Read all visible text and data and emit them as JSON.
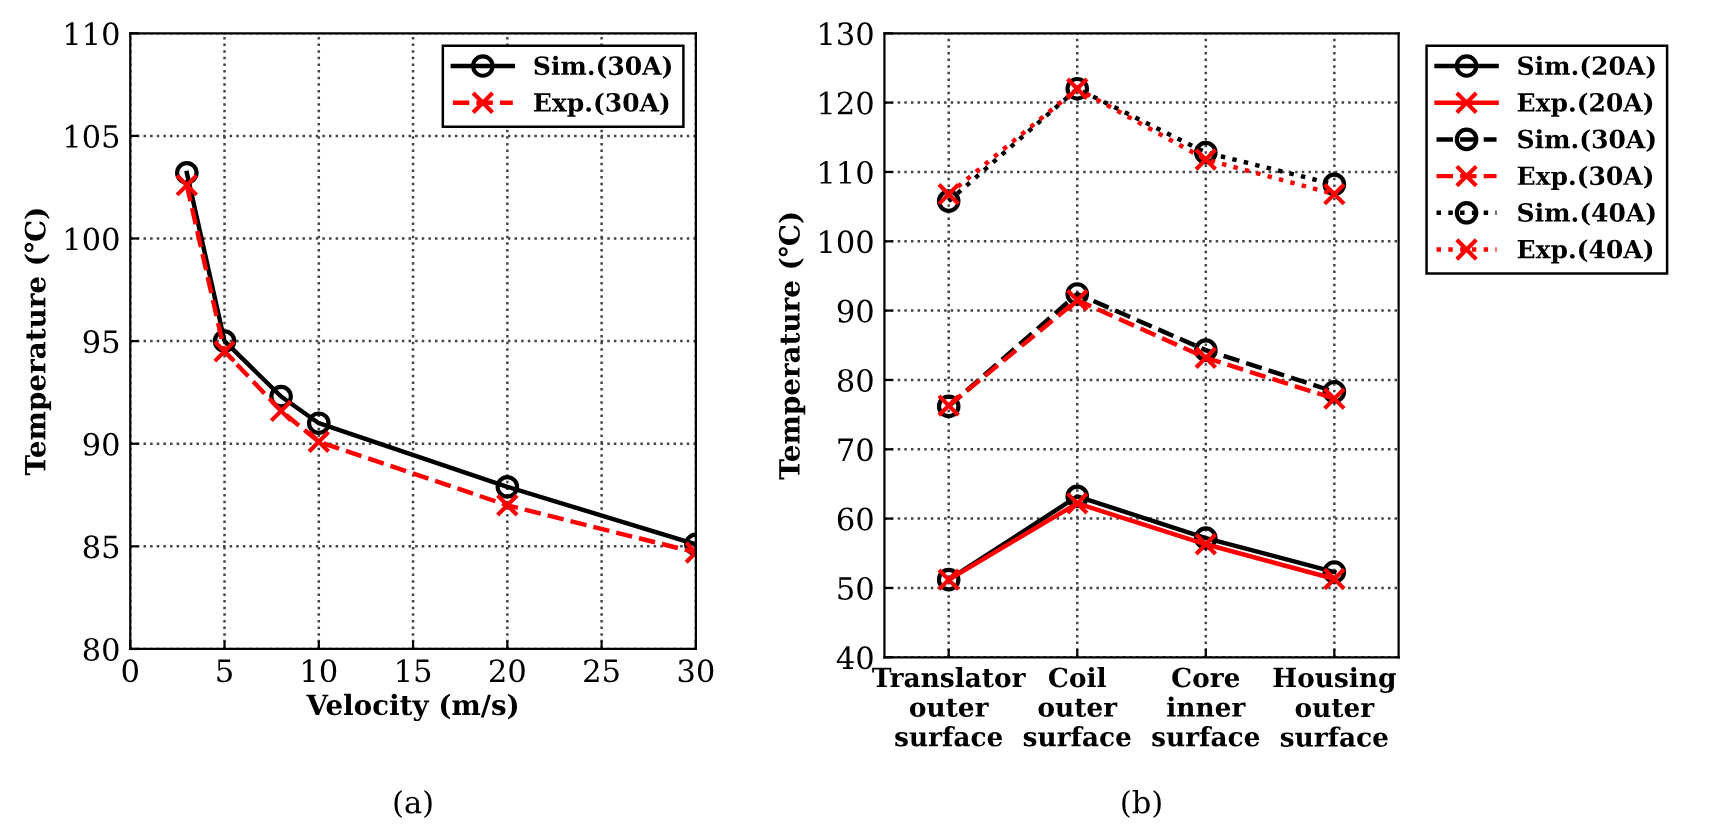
{
  "chart_data": [
    {
      "type": "line",
      "xlabel": "Velocity (m/s)",
      "ylabel": "Temperature (℃)",
      "x": [
        3,
        5,
        8,
        10,
        20,
        30
      ],
      "xlim": [
        0,
        30
      ],
      "xticks": [
        0,
        5,
        10,
        15,
        20,
        25,
        30
      ],
      "ylim": [
        80,
        110
      ],
      "yticks": [
        80,
        85,
        90,
        95,
        100,
        105,
        110
      ],
      "grid": true,
      "legend": "top right",
      "annotations": [
        "(a)"
      ],
      "series": [
        {
          "name": "Sim.(30A)",
          "color": "#000000",
          "marker": "circle",
          "line_style": "solid",
          "values": [
            103.2,
            95,
            92.3,
            91,
            87.9,
            85.1
          ]
        },
        {
          "name": "Exp.(30A)",
          "color": "#ff0000",
          "marker": "cross",
          "line_style": "dashed",
          "values": [
            102.6,
            94.5,
            91.6,
            90.1,
            87.0,
            84.7
          ]
        }
      ]
    },
    {
      "type": "line",
      "ylabel": "Temperature (℃)",
      "categories": [
        "Translator\nouter\nsurface",
        "Coil\nouter\nsurface",
        "Core\ninner\nsurface",
        "Housing\nouter\nsurface"
      ],
      "ylim": [
        40,
        130
      ],
      "yticks": [
        40,
        50,
        60,
        70,
        80,
        90,
        100,
        110,
        120,
        130
      ],
      "grid": true,
      "legend": "right",
      "annotations": [
        "(b)"
      ],
      "series": [
        {
          "name": "Sim.(20A)",
          "color": "#000000",
          "marker": "circle",
          "line_style": "solid",
          "values": [
            51.2,
            63.2,
            57.2,
            52.3
          ]
        },
        {
          "name": "Exp.(20A)",
          "color": "#ff0000",
          "marker": "cross",
          "line_style": "solid",
          "values": [
            51.2,
            62.2,
            56.3,
            51.3
          ]
        },
        {
          "name": "Sim.(30A)",
          "color": "#000000",
          "marker": "circle",
          "line_style": "dashed",
          "values": [
            76.2,
            92.4,
            84.3,
            78.3
          ]
        },
        {
          "name": "Exp.(30A)",
          "color": "#ff0000",
          "marker": "cross",
          "line_style": "dashed",
          "values": [
            76.3,
            91.5,
            83.2,
            77.3
          ]
        },
        {
          "name": "Sim.(40A)",
          "color": "#000000",
          "marker": "circle",
          "line_style": "dotted",
          "values": [
            105.8,
            122,
            112.8,
            108.2
          ]
        },
        {
          "name": "Exp.(40A)",
          "color": "#ff0000",
          "marker": "cross",
          "line_style": "dotted",
          "values": [
            106.8,
            122,
            111.8,
            106.8
          ]
        }
      ]
    }
  ]
}
